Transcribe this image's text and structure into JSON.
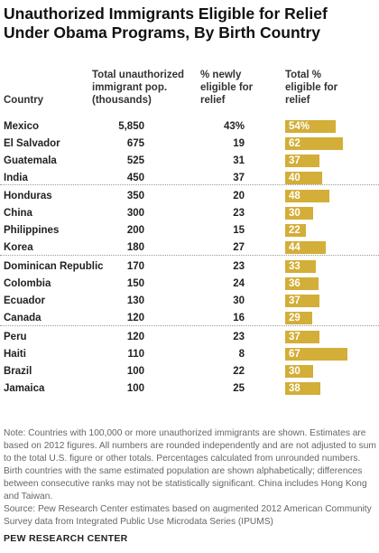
{
  "title": "Unauthorized Immigrants Eligible for Relief Under Obama Programs, By Birth Country",
  "headers": {
    "country": "Country",
    "pop": "Total unauthorized immigrant pop. (thousands)",
    "pct": "% newly eligible for relief",
    "total": "Total % eligible for relief"
  },
  "chart_data": {
    "type": "table",
    "bar_color": "#D3AE38",
    "columns": [
      "Country",
      "Total unauthorized immigrant pop. (thousands)",
      "% newly eligible for relief",
      "Total % eligible for relief"
    ],
    "groups": [
      [
        {
          "country": "Mexico",
          "pop": "5,850",
          "pct": "43%",
          "total": 54,
          "total_label": "54%"
        },
        {
          "country": "El Salvador",
          "pop": "675",
          "pct": "19",
          "total": 62,
          "total_label": "62"
        },
        {
          "country": "Guatemala",
          "pop": "525",
          "pct": "31",
          "total": 37,
          "total_label": "37"
        },
        {
          "country": "India",
          "pop": "450",
          "pct": "37",
          "total": 40,
          "total_label": "40"
        }
      ],
      [
        {
          "country": "Honduras",
          "pop": "350",
          "pct": "20",
          "total": 48,
          "total_label": "48"
        },
        {
          "country": "China",
          "pop": "300",
          "pct": "23",
          "total": 30,
          "total_label": "30"
        },
        {
          "country": "Philippines",
          "pop": "200",
          "pct": "15",
          "total": 22,
          "total_label": "22"
        },
        {
          "country": "Korea",
          "pop": "180",
          "pct": "27",
          "total": 44,
          "total_label": "44"
        }
      ],
      [
        {
          "country": "Dominican Republic",
          "pop": "170",
          "pct": "23",
          "total": 33,
          "total_label": "33"
        },
        {
          "country": "Colombia",
          "pop": "150",
          "pct": "24",
          "total": 36,
          "total_label": "36"
        },
        {
          "country": "Ecuador",
          "pop": "130",
          "pct": "30",
          "total": 37,
          "total_label": "37"
        },
        {
          "country": "Canada",
          "pop": "120",
          "pct": "16",
          "total": 29,
          "total_label": "29"
        }
      ],
      [
        {
          "country": "Peru",
          "pop": "120",
          "pct": "23",
          "total": 37,
          "total_label": "37"
        },
        {
          "country": "Haiti",
          "pop": "110",
          "pct": "8",
          "total": 67,
          "total_label": "67"
        },
        {
          "country": "Brazil",
          "pop": "100",
          "pct": "22",
          "total": 30,
          "total_label": "30"
        },
        {
          "country": "Jamaica",
          "pop": "100",
          "pct": "25",
          "total": 38,
          "total_label": "38"
        }
      ]
    ]
  },
  "note": "Note: Countries with 100,000 or more unauthorized immigrants are shown. Estimates are based on 2012 figures. All numbers are rounded independently and are not adjusted to sum to the total U.S. figure or other totals. Percentages calculated from unrounded numbers. Birth countries with the same estimated population are shown alphabetically; differences between consecutive ranks may not be statistically significant. China includes Hong Kong and Taiwan.",
  "source": "Source: Pew Research Center estimates based on augmented 2012 American Community Survey data from Integrated Public Use Microdata Series (IPUMS)",
  "brand": "PEW RESEARCH CENTER"
}
